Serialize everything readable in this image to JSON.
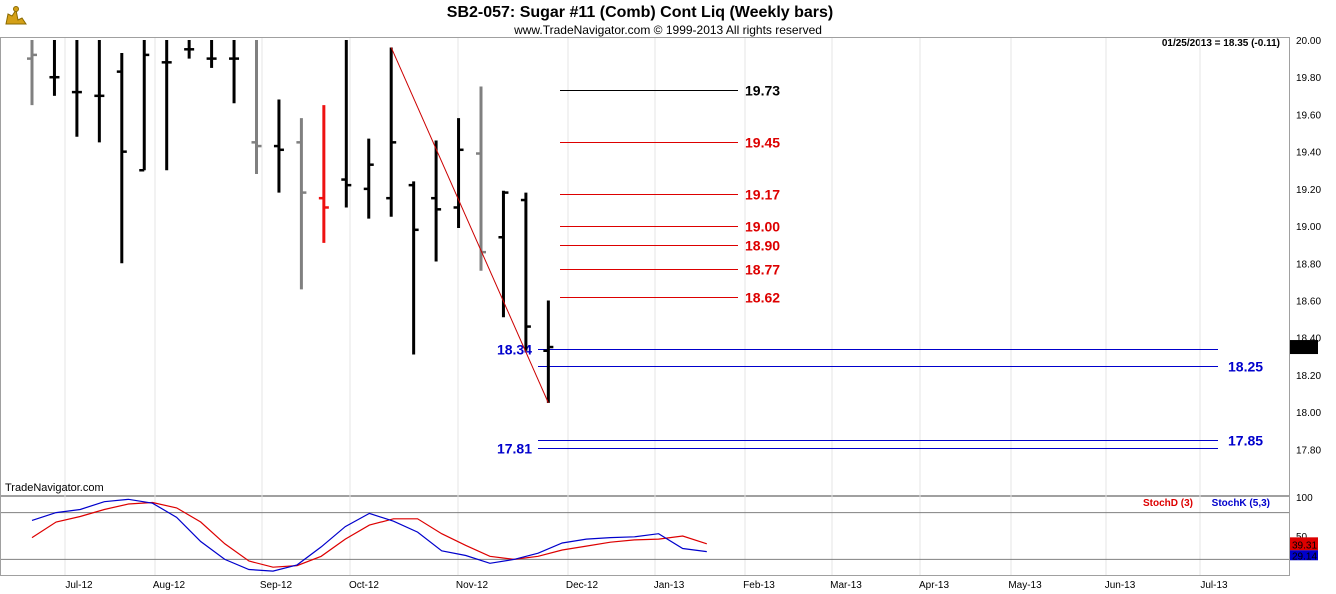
{
  "title": "SB2-057:  Sugar #11 (Comb) Cont Liq  (Weekly bars)",
  "copyright": "www.TradeNavigator.com © 1999-2013 All rights reserved",
  "last_quote": "01/25/2013 = 18.35 (-0.11)",
  "watermark": "TradeNavigator.com",
  "colors": {
    "up": "#000000",
    "down": "#808080",
    "highlight": "#ee1111",
    "fib": "#dd0000",
    "support": "#0000cc",
    "stoch_d": "#dd0000",
    "stoch_k": "#0000cc"
  },
  "chart_data": {
    "type": "bar",
    "x_labels": [
      "Jul-12",
      "Aug-12",
      "Sep-12",
      "Oct-12",
      "Nov-12",
      "Dec-12",
      "Jan-13",
      "Feb-13",
      "Mar-13",
      "Apr-13",
      "May-13",
      "Jun-13",
      "Jul-13"
    ],
    "ylim": [
      17.7,
      20.0
    ],
    "yticks": [
      "17.80",
      "18.00",
      "18.20",
      "18.40",
      "18.60",
      "18.80",
      "19.00",
      "19.20",
      "19.40",
      "19.60",
      "19.80",
      "20.00"
    ],
    "price_marker": "18.35",
    "bars": [
      {
        "high": 20.0,
        "low": 19.65,
        "open": 19.9,
        "close": 19.92,
        "tone": "down"
      },
      {
        "high": 20.0,
        "low": 19.7,
        "open": 19.8,
        "close": 19.8,
        "tone": "up"
      },
      {
        "high": 20.0,
        "low": 19.48,
        "open": 19.72,
        "close": 19.72,
        "tone": "up"
      },
      {
        "high": 20.0,
        "low": 19.45,
        "open": 19.7,
        "close": 19.7,
        "tone": "up"
      },
      {
        "high": 19.93,
        "low": 18.8,
        "open": 19.83,
        "close": 19.4,
        "tone": "up"
      },
      {
        "high": 20.0,
        "low": 19.3,
        "open": 19.3,
        "close": 19.92,
        "tone": "up"
      },
      {
        "high": 20.0,
        "low": 19.3,
        "open": 19.88,
        "close": 19.88,
        "tone": "up"
      },
      {
        "high": 20.0,
        "low": 19.9,
        "open": 19.95,
        "close": 19.95,
        "tone": "up"
      },
      {
        "high": 20.0,
        "low": 19.85,
        "open": 19.9,
        "close": 19.9,
        "tone": "up"
      },
      {
        "high": 20.0,
        "low": 19.66,
        "open": 19.9,
        "close": 19.9,
        "tone": "up"
      },
      {
        "high": 20.0,
        "low": 19.28,
        "open": 19.45,
        "close": 19.43,
        "tone": "down"
      },
      {
        "high": 19.68,
        "low": 19.18,
        "open": 19.43,
        "close": 19.41,
        "tone": "up"
      },
      {
        "high": 19.58,
        "low": 18.66,
        "open": 19.45,
        "close": 19.18,
        "tone": "down"
      },
      {
        "high": 19.65,
        "low": 18.91,
        "open": 19.15,
        "close": 19.1,
        "tone": "highlight"
      },
      {
        "high": 20.0,
        "low": 19.1,
        "open": 19.25,
        "close": 19.22,
        "tone": "up"
      },
      {
        "high": 19.47,
        "low": 19.04,
        "open": 19.2,
        "close": 19.33,
        "tone": "up"
      },
      {
        "high": 19.96,
        "low": 19.05,
        "open": 19.15,
        "close": 19.45,
        "tone": "up"
      },
      {
        "high": 19.24,
        "low": 18.31,
        "open": 19.22,
        "close": 18.98,
        "tone": "up"
      },
      {
        "high": 19.46,
        "low": 18.81,
        "open": 19.15,
        "close": 19.09,
        "tone": "up"
      },
      {
        "high": 19.58,
        "low": 18.99,
        "open": 19.1,
        "close": 19.41,
        "tone": "up"
      },
      {
        "high": 19.75,
        "low": 18.76,
        "open": 19.39,
        "close": 18.86,
        "tone": "down"
      },
      {
        "high": 19.19,
        "low": 18.51,
        "open": 18.94,
        "close": 19.18,
        "tone": "up"
      },
      {
        "high": 19.18,
        "low": 18.33,
        "open": 19.14,
        "close": 18.46,
        "tone": "up"
      },
      {
        "high": 18.6,
        "low": 18.05,
        "open": 18.33,
        "close": 18.35,
        "tone": "up"
      }
    ],
    "levels": [
      {
        "label": "19.73",
        "value": 19.73,
        "color": "#000000",
        "side": "right"
      },
      {
        "label": "19.45",
        "value": 19.45,
        "color": "#dd0000",
        "side": "right"
      },
      {
        "label": "19.17",
        "value": 19.17,
        "color": "#dd0000",
        "side": "right"
      },
      {
        "label": "19.00",
        "value": 19.0,
        "color": "#dd0000",
        "side": "right"
      },
      {
        "label": "18.90",
        "value": 18.9,
        "color": "#dd0000",
        "side": "right"
      },
      {
        "label": "18.77",
        "value": 18.77,
        "color": "#dd0000",
        "side": "right"
      },
      {
        "label": "18.62",
        "value": 18.62,
        "color": "#dd0000",
        "side": "right"
      },
      {
        "label": "18.34",
        "value": 18.34,
        "color": "#0000cc",
        "side": "left"
      },
      {
        "label": "18.25",
        "value": 18.25,
        "color": "#0000cc",
        "side": "right"
      },
      {
        "label": "17.81",
        "value": 17.81,
        "color": "#0000cc",
        "side": "left"
      },
      {
        "label": "17.85",
        "value": 17.85,
        "color": "#0000cc",
        "side": "right"
      }
    ],
    "trendline": {
      "from": {
        "bar": 16,
        "value": 19.96
      },
      "to": {
        "bar": 23,
        "value": 18.05
      }
    },
    "stochastic": {
      "ylim": [
        0,
        100
      ],
      "yticks": [
        "100",
        "50"
      ],
      "overbought": 80,
      "oversold": 20,
      "legend_d": "StochD (3)",
      "legend_k": "StochK (5,3)",
      "value_d": "39.31",
      "value_k": "29.14",
      "k": [
        70,
        80,
        84,
        94,
        97,
        92,
        74,
        43,
        20,
        7,
        5,
        13,
        36,
        62,
        79,
        69,
        55,
        31,
        25,
        15,
        20,
        28,
        41,
        46,
        48,
        49,
        53,
        34,
        30
      ],
      "d": [
        48,
        68,
        75,
        84,
        91,
        93,
        86,
        68,
        40,
        18,
        10,
        12,
        24,
        46,
        64,
        72,
        72,
        53,
        38,
        24,
        20,
        24,
        32,
        37,
        42,
        45,
        46,
        50,
        40
      ]
    }
  }
}
